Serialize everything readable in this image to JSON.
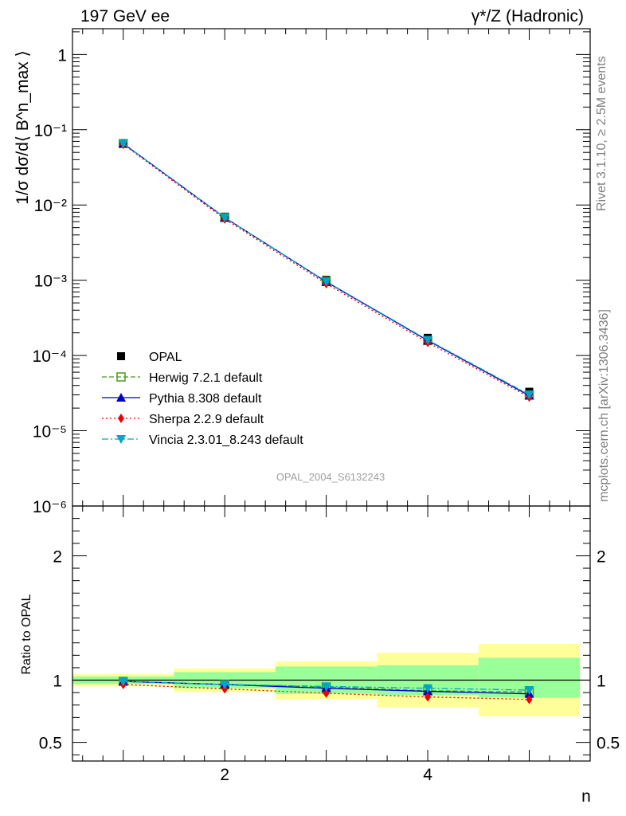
{
  "header": {
    "left_title": "197 GeV ee",
    "right_title": "γ*/Z (Hadronic)"
  },
  "side_labels": {
    "rivet": "Rivet 3.1.10, ≥ 2.5M events",
    "mcplots": "mcplots.cern.ch [arXiv:1306.3436]"
  },
  "watermark": "OPAL_2004_S6132243",
  "chart_data": [
    {
      "type": "line",
      "panel": "main",
      "ylabel": "1/σ dσ/d⟨ B^n_max ⟩",
      "yscale": "log",
      "ylim": [
        1e-06,
        2.2
      ],
      "xlim": [
        0.5,
        5.6
      ],
      "x_ticks": [
        2,
        4
      ],
      "y_tick_labels": [
        "10⁻⁶",
        "10⁻⁵",
        "10⁻⁴",
        "10⁻³",
        "10⁻²",
        "10⁻¹",
        "1"
      ],
      "x": [
        1,
        2,
        3,
        4,
        5
      ],
      "x_bins": [
        [
          0.5,
          1.5
        ],
        [
          1.5,
          2.5
        ],
        [
          2.5,
          3.5
        ],
        [
          3.5,
          4.5
        ],
        [
          4.5,
          5.5
        ]
      ],
      "series": [
        {
          "name": "OPAL",
          "role": "data",
          "color": "#000000",
          "marker": "square",
          "values": [
            0.066,
            0.007,
            0.00101,
            0.000172,
            3.3e-05
          ]
        },
        {
          "name": "Herwig 7.2.1 default",
          "color": "#4a9a1e",
          "dash": "6,3",
          "marker": "open-square",
          "values": [
            0.0655,
            0.0068,
            0.00096,
            0.000158,
            2.98e-05
          ]
        },
        {
          "name": "Pythia 8.308 default",
          "color": "#0000cc",
          "dash": "",
          "marker": "triangle-up",
          "values": [
            0.0655,
            0.0068,
            0.00095,
            0.000158,
            2.93e-05
          ]
        },
        {
          "name": "Sherpa 2.2.9 default",
          "color": "#ee0000",
          "dash": "2,3",
          "marker": "diamond",
          "values": [
            0.0638,
            0.0065,
            0.0009,
            0.000149,
            2.8e-05
          ]
        },
        {
          "name": "Vincia 2.3.01_8.243 default",
          "color": "#00a5c8",
          "dash": "8,3,2,3",
          "marker": "triangle-down",
          "values": [
            0.0655,
            0.0068,
            0.00096,
            0.000161,
            3.02e-05
          ]
        }
      ],
      "legend": "lower-left"
    },
    {
      "type": "line",
      "panel": "ratio",
      "ylabel": "Ratio to OPAL",
      "xlabel": "n",
      "ylim": [
        0.35,
        2.4
      ],
      "y_tick_labels": [
        "0.5",
        "1",
        "2"
      ],
      "band_inner": [
        [
          0.97,
          1.03
        ],
        [
          0.935,
          1.065
        ],
        [
          0.89,
          1.11
        ],
        [
          0.88,
          1.12
        ],
        [
          0.86,
          1.18
        ]
      ],
      "band_outer": [
        [
          0.95,
          1.05
        ],
        [
          0.905,
          1.095
        ],
        [
          0.85,
          1.15
        ],
        [
          0.78,
          1.22
        ],
        [
          0.71,
          1.29
        ]
      ],
      "series": [
        {
          "name": "Herwig 7.2.1 default",
          "values": [
            0.99,
            0.965,
            0.945,
            0.915,
            0.905
          ]
        },
        {
          "name": "Pythia 8.308 default",
          "values": [
            0.99,
            0.965,
            0.935,
            0.91,
            0.89
          ]
        },
        {
          "name": "Sherpa 2.2.9 default",
          "values": [
            0.965,
            0.93,
            0.895,
            0.865,
            0.845
          ]
        },
        {
          "name": "Vincia 2.3.01_8.243 default",
          "values": [
            0.99,
            0.965,
            0.95,
            0.935,
            0.92
          ]
        }
      ],
      "colors": {
        "inner": "#99ff99",
        "outer": "#ffff99"
      }
    }
  ]
}
